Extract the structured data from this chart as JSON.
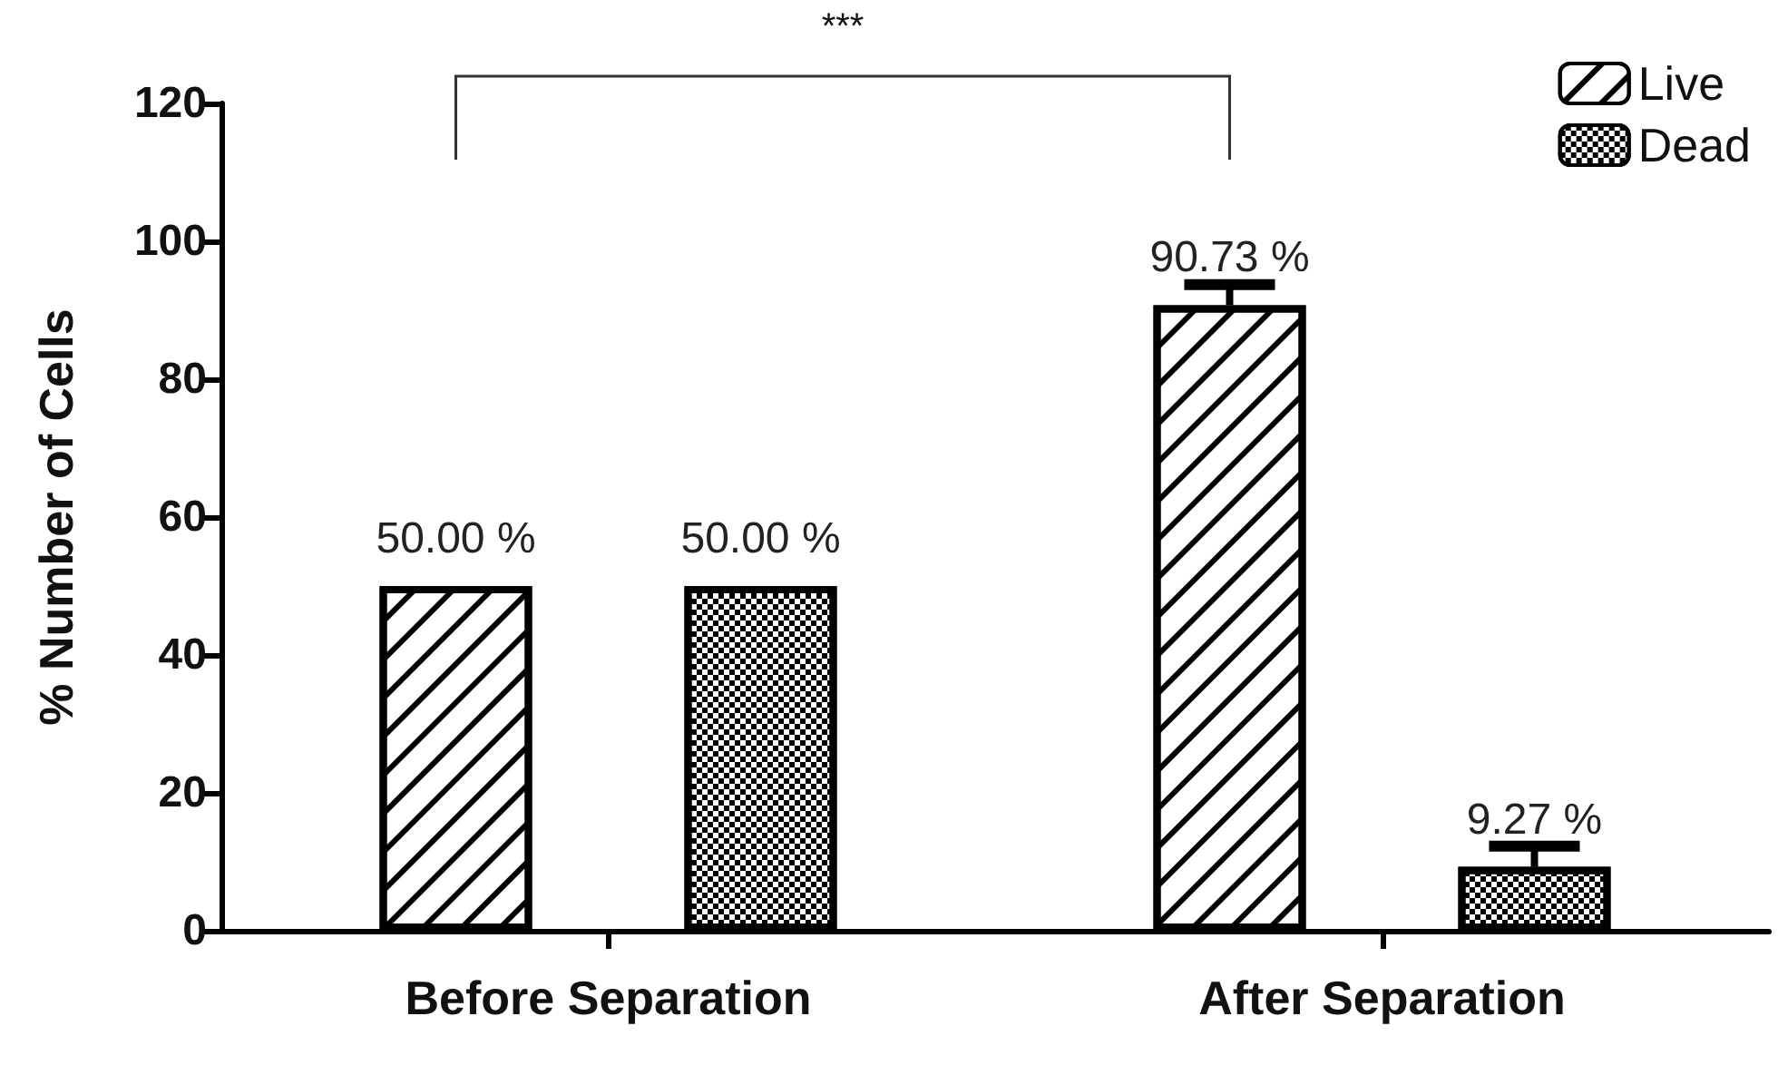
{
  "chart_data": {
    "type": "bar",
    "ylabel": "% Number of Cells",
    "categories": [
      "Before Separation",
      "After Separation"
    ],
    "series": [
      {
        "name": "Live",
        "color": "#000000",
        "values": [
          50.0,
          90.73
        ],
        "errors": [
          null,
          3
        ],
        "value_labels": [
          "50.00 %",
          "90.73 %"
        ]
      },
      {
        "name": "Dead",
        "color": "#000000",
        "values": [
          50.0,
          9.27
        ],
        "errors": [
          null,
          3
        ],
        "value_labels": [
          "50.00 %",
          "9.27 %"
        ]
      }
    ],
    "ylim": [
      0,
      120
    ],
    "yticks": [
      0,
      20,
      40,
      60,
      80,
      100,
      120
    ],
    "grid": false,
    "legend": "top right",
    "annotations": [
      "***"
    ]
  }
}
